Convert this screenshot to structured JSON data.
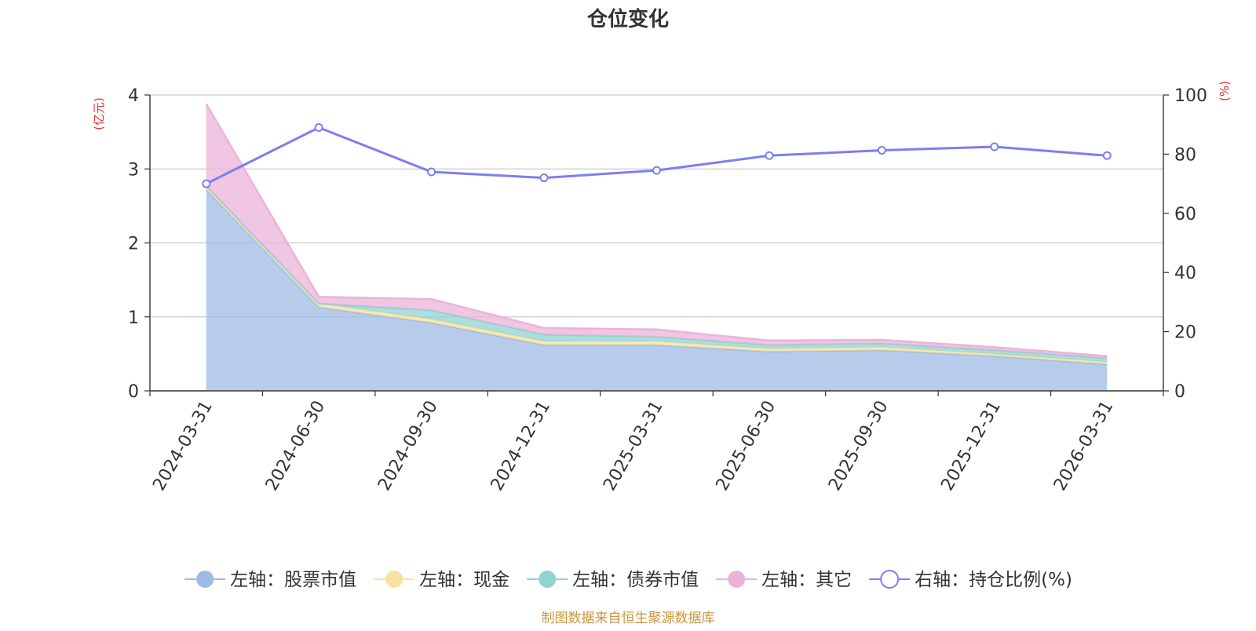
{
  "chart_data": {
    "type": "area",
    "title": "仓位变化",
    "left_unit": "(亿元)",
    "right_unit": "(%)",
    "categories": [
      "2024-03-31",
      "2024-06-30",
      "2024-09-30",
      "2024-12-31",
      "2025-03-31",
      "2025-06-30",
      "2025-09-30",
      "2025-12-31",
      "2026-03-31"
    ],
    "left_axis": {
      "min": 0,
      "max": 4,
      "ticks": [
        "0",
        "1",
        "2",
        "3",
        "4"
      ]
    },
    "right_axis": {
      "min": 0,
      "max": 100,
      "ticks": [
        "0",
        "20",
        "40",
        "60",
        "80",
        "100"
      ]
    },
    "stacked_series": [
      {
        "name": "左轴：股票市值",
        "color": "#9fbbe3",
        "values": [
          2.72,
          1.13,
          0.92,
          0.62,
          0.62,
          0.53,
          0.55,
          0.47,
          0.36
        ]
      },
      {
        "name": "左轴：现金",
        "color": "#f7e3a0",
        "values": [
          0.05,
          0.05,
          0.05,
          0.05,
          0.05,
          0.04,
          0.04,
          0.03,
          0.03
        ]
      },
      {
        "name": "左轴：债券市值",
        "color": "#8fd3d3",
        "values": [
          0.0,
          0.0,
          0.12,
          0.09,
          0.06,
          0.05,
          0.05,
          0.05,
          0.05
        ]
      },
      {
        "name": "左轴：其它",
        "color": "#ebb3d9",
        "values": [
          1.11,
          0.09,
          0.15,
          0.09,
          0.1,
          0.06,
          0.05,
          0.04,
          0.03
        ]
      }
    ],
    "line_series": {
      "name": "右轴：持仓比例(%)",
      "color": "#7b7ff0",
      "values": [
        70,
        89,
        74,
        72,
        74.5,
        79.5,
        81.3,
        82.5,
        79.5
      ]
    },
    "footer": "制图数据来自恒生聚源数据库"
  }
}
